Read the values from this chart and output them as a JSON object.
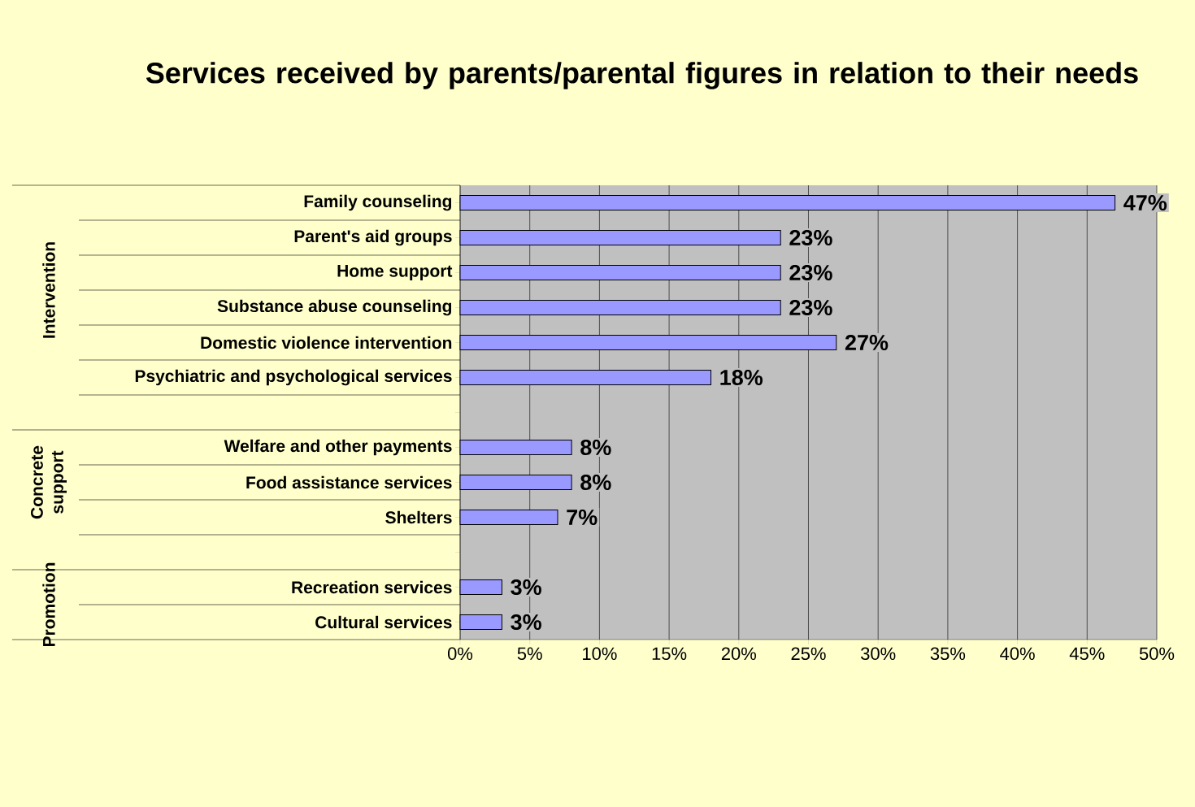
{
  "chart_data": {
    "type": "bar",
    "orientation": "horizontal",
    "title": "Services received by parents/parental figures in relation to their needs",
    "categories": [
      "Family counseling",
      "Parent's aid groups",
      "Home support",
      "Substance abuse counseling",
      "Domestic violence intervention",
      "Psychiatric and psychological services",
      null,
      "Welfare and other payments",
      "Food assistance services",
      "Shelters",
      null,
      "Recreation services",
      "Cultural services"
    ],
    "values": [
      47,
      23,
      23,
      23,
      27,
      18,
      null,
      8,
      8,
      7,
      null,
      3,
      3
    ],
    "value_labels": [
      "47%",
      "23%",
      "23%",
      "23%",
      "27%",
      "18%",
      null,
      "8%",
      "8%",
      "7%",
      null,
      "3%",
      "3%"
    ],
    "color": "#9999ff",
    "xlim": [
      0,
      50
    ],
    "xticks": [
      {
        "value": 0,
        "label": "0%"
      },
      {
        "value": 5,
        "label": "5%"
      },
      {
        "value": 10,
        "label": "10%"
      },
      {
        "value": 15,
        "label": "15%"
      },
      {
        "value": 20,
        "label": "20%"
      },
      {
        "value": 25,
        "label": "25%"
      },
      {
        "value": 30,
        "label": "30%"
      },
      {
        "value": 35,
        "label": "35%"
      },
      {
        "value": 40,
        "label": "40%"
      },
      {
        "value": 45,
        "label": "45%"
      },
      {
        "value": 50,
        "label": "50%"
      }
    ],
    "grid": "x",
    "annotations": [
      "Intervention",
      "Concrete support",
      "Promotion"
    ]
  }
}
